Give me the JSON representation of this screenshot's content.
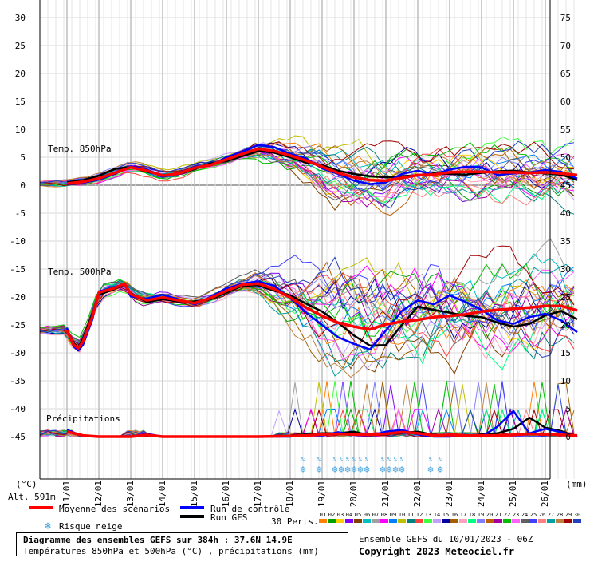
{
  "chart_data": {
    "type": "line",
    "title": "Diagramme des ensembles GEFS sur 384h : 37.6N 14.9E",
    "subtitle": "Températures 850hPa et 500hPa (°C) , précipitations (mm)",
    "left_axis_label": "(°C)",
    "right_axis_label": "(mm)",
    "altitude_label": "Alt. 591m",
    "left_ticks": [
      30,
      25,
      20,
      15,
      10,
      5,
      0,
      -5,
      -10,
      -15,
      -20,
      -25,
      -30,
      -35,
      -40,
      -45
    ],
    "right_ticks": [
      75,
      70,
      65,
      60,
      55,
      50,
      45,
      40,
      35,
      30,
      25,
      20,
      15,
      10,
      5,
      0
    ],
    "ylim_left": [
      -45,
      30
    ],
    "date_ticks": [
      "11/01",
      "12/01",
      "13/01",
      "14/01",
      "15/01",
      "16/01",
      "17/01",
      "18/01",
      "19/01",
      "20/01",
      "21/01",
      "22/01",
      "23/01",
      "24/01",
      "25/01",
      "26/01"
    ],
    "panel_labels": {
      "t850": "Temp. 850hPa",
      "t500": "Temp. 500hPa",
      "precip": "Précipitations"
    },
    "snow_risk_times": [
      7.4,
      7.9,
      8.4,
      8.6,
      8.8,
      9.0,
      9.2,
      9.4,
      9.9,
      10.1,
      10.3,
      10.5,
      11.4,
      11.7
    ],
    "series": {
      "mean_850": {
        "name": "Moyenne des scénarios",
        "color": "#ff0000",
        "x": [
          0,
          0.5,
          1,
          1.5,
          2,
          2.5,
          3,
          3.5,
          4,
          4.5,
          5,
          5.5,
          6,
          6.5,
          7,
          7.5,
          8,
          8.5,
          9,
          9.5,
          10,
          10.5,
          11,
          11.5,
          12,
          12.5,
          13,
          13.5,
          14,
          14.5,
          15,
          15.5,
          16
        ],
        "y": [
          0.3,
          0.6,
          1.2,
          2.2,
          3.2,
          2.6,
          1.7,
          2.1,
          3.1,
          3.6,
          4.6,
          5.6,
          6.5,
          6.1,
          5.3,
          4.4,
          3.3,
          2.2,
          1.4,
          0.9,
          0.8,
          1.3,
          1.8,
          1.9,
          2.3,
          2.4,
          2.4,
          2.3,
          2.3,
          2.2,
          2.3,
          2.1,
          1.8
        ]
      },
      "control_850": {
        "name": "Run de contrôle",
        "color": "#0000ff",
        "x": [
          0,
          0.5,
          1,
          1.5,
          2,
          2.5,
          3,
          3.5,
          4,
          4.5,
          5,
          5.5,
          6,
          6.5,
          7,
          7.5,
          8,
          8.5,
          9,
          9.5,
          10,
          10.5,
          11,
          11.5,
          12,
          12.5,
          13,
          13.5,
          14,
          14.5,
          15,
          15.5,
          16
        ],
        "y": [
          0.2,
          0.4,
          1.0,
          2.0,
          3.4,
          2.8,
          1.5,
          2.2,
          3.3,
          3.5,
          5.0,
          6.0,
          7.2,
          6.8,
          5.6,
          4.8,
          3.0,
          2.0,
          0.8,
          0.2,
          0.5,
          2.0,
          2.6,
          1.9,
          2.8,
          3.3,
          3.2,
          1.8,
          2.1,
          2.3,
          2.7,
          2.4,
          1.2
        ]
      },
      "gfs_850": {
        "name": "Run GFS",
        "color": "#000000",
        "x": [
          0,
          0.5,
          1,
          1.5,
          2,
          2.5,
          3,
          3.5,
          4,
          4.5,
          5,
          5.5,
          6,
          6.5,
          7,
          7.5,
          8,
          8.5,
          9,
          9.5,
          10,
          10.5,
          11,
          11.5,
          12,
          12.5,
          13,
          13.5,
          14,
          14.5,
          15,
          15.5,
          16
        ],
        "y": [
          0.5,
          0.9,
          1.7,
          2.9,
          3.3,
          2.4,
          1.8,
          2.0,
          2.9,
          3.9,
          4.3,
          5.2,
          6.1,
          5.8,
          5.0,
          4.0,
          3.6,
          2.6,
          2.0,
          1.6,
          1.4,
          1.6,
          1.8,
          2.1,
          2.0,
          1.9,
          2.2,
          2.5,
          2.6,
          2.3,
          2.1,
          1.9,
          0.9
        ]
      },
      "mean_500": {
        "name": "Moyenne des scénarios",
        "color": "#ff0000",
        "x": [
          0,
          0.2,
          0.35,
          0.5,
          0.8,
          1,
          1.5,
          1.8,
          2,
          2.5,
          3,
          3.5,
          4,
          4.5,
          5,
          5.5,
          6,
          6.5,
          7,
          7.5,
          8,
          8.5,
          9,
          9.5,
          10,
          10.5,
          11,
          11.5,
          12,
          12.5,
          13,
          13.5,
          14,
          14.5,
          15,
          15.5,
          16
        ],
        "y": [
          -26,
          -28.5,
          -29.2,
          -28,
          -23.5,
          -19.2,
          -18.4,
          -17.6,
          -19.5,
          -20.6,
          -20.1,
          -20.6,
          -21.1,
          -20.2,
          -18.9,
          -17.8,
          -17.6,
          -18.6,
          -20.1,
          -21.9,
          -23.4,
          -24.6,
          -25.3,
          -25.8,
          -24.9,
          -24.4,
          -24.1,
          -23.6,
          -23.4,
          -23.1,
          -22.6,
          -22.3,
          -22.1,
          -21.9,
          -21.6,
          -21.6,
          -22.4
        ]
      },
      "control_500": {
        "name": "Run de contrôle",
        "color": "#0000ff",
        "x": [
          0,
          0.2,
          0.35,
          0.5,
          0.8,
          1,
          1.5,
          1.8,
          2,
          2.5,
          3,
          3.5,
          4,
          4.5,
          5,
          5.5,
          6,
          6.5,
          7,
          7.5,
          8,
          8.5,
          9,
          9.5,
          10,
          10.5,
          11,
          11.5,
          12,
          12.5,
          13,
          13.5,
          14,
          14.5,
          15,
          15.5,
          16
        ],
        "y": [
          -25.5,
          -28.8,
          -29.6,
          -28.6,
          -24.0,
          -19.0,
          -18.3,
          -17.6,
          -19.9,
          -20.3,
          -19.6,
          -20.4,
          -21.3,
          -20.0,
          -18.5,
          -17.6,
          -17.2,
          -18.0,
          -20.2,
          -22.8,
          -25.0,
          -27.2,
          -28.4,
          -29.4,
          -26.0,
          -22.5,
          -20.6,
          -21.3,
          -19.7,
          -20.9,
          -22.3,
          -24.2,
          -24.8,
          -23.6,
          -23.0,
          -24.2,
          -26.3
        ]
      },
      "gfs_500": {
        "name": "Run GFS",
        "color": "#000000",
        "x": [
          0,
          0.2,
          0.35,
          0.5,
          0.8,
          1,
          1.5,
          1.8,
          2,
          2.5,
          3,
          3.5,
          4,
          4.5,
          5,
          5.5,
          6,
          6.5,
          7,
          7.5,
          8,
          8.5,
          9,
          9.5,
          10,
          10.5,
          11,
          11.5,
          12,
          12.5,
          13,
          13.5,
          14,
          14.5,
          15,
          15.5,
          16
        ],
        "y": [
          -25.8,
          -28.2,
          -29.0,
          -27.5,
          -23.0,
          -19.6,
          -18.6,
          -17.7,
          -19.3,
          -20.9,
          -20.4,
          -20.8,
          -20.8,
          -20.4,
          -19.2,
          -18.0,
          -17.9,
          -18.9,
          -19.7,
          -21.2,
          -22.6,
          -24.6,
          -26.9,
          -28.7,
          -28.6,
          -25.0,
          -21.7,
          -22.3,
          -22.8,
          -23.4,
          -23.6,
          -24.6,
          -25.3,
          -24.8,
          -23.3,
          -22.5,
          -24.0
        ]
      },
      "mean_precip": {
        "name": "Moyenne des scénarios",
        "color": "#ff0000",
        "x": [
          0,
          0.5,
          1,
          2,
          2.5,
          3,
          4,
          5,
          6,
          7,
          7.5,
          8,
          8.5,
          9,
          9.5,
          10,
          10.5,
          11,
          11.5,
          12,
          12.5,
          13,
          13.5,
          14,
          14.5,
          15,
          15.5,
          16
        ],
        "y": [
          0.9,
          0.2,
          0,
          0,
          0.3,
          0,
          0,
          0,
          0,
          0.1,
          0.2,
          0.4,
          0.5,
          0.4,
          0.3,
          0.5,
          0.8,
          0.6,
          0.2,
          0.3,
          0.2,
          0.2,
          0.2,
          0.3,
          0.5,
          0.4,
          0.3,
          0.2
        ]
      },
      "control_precip": {
        "name": "Run de contrôle",
        "color": "#0000ff",
        "x": [
          0,
          0.5,
          1,
          2,
          2.5,
          3,
          4,
          5,
          6,
          7,
          7.5,
          8,
          8.5,
          9,
          9.5,
          10,
          10.5,
          11,
          11.5,
          12,
          12.5,
          13,
          13.5,
          14,
          14.5,
          15,
          15.5,
          16
        ],
        "y": [
          1.2,
          0.1,
          0,
          0,
          0.5,
          0,
          0,
          0,
          0,
          0,
          0.3,
          0.2,
          0.8,
          0.3,
          0.1,
          0.9,
          1.2,
          0.4,
          0,
          0,
          0.3,
          0,
          1.8,
          4.6,
          0.6,
          1.4,
          0.8,
          0
        ]
      },
      "gfs_precip": {
        "name": "Run GFS",
        "color": "#000000",
        "x": [
          0,
          0.5,
          1,
          2,
          2.5,
          3,
          4,
          5,
          6,
          7,
          7.5,
          8,
          8.5,
          9,
          9.5,
          10,
          10.5,
          11,
          11.5,
          12,
          12.5,
          13,
          13.5,
          14,
          14.5,
          15,
          15.5,
          16
        ],
        "y": [
          1.0,
          0.2,
          0,
          0,
          0.2,
          0,
          0,
          0,
          0,
          0.2,
          0.4,
          0.6,
          0.6,
          0.9,
          0.2,
          0.4,
          0.7,
          0.9,
          0.3,
          0.2,
          0.1,
          0.4,
          0.6,
          1.4,
          3.4,
          1.6,
          1.0,
          0
        ]
      }
    }
  },
  "legend": {
    "mean": "Moyenne des scénarios",
    "control": "Run de contrôle",
    "gfs": "Run GFS",
    "snow": "Risque neige",
    "perts_label": "30 Perts.",
    "perts_numbers": [
      "01",
      "02",
      "03",
      "04",
      "05",
      "06",
      "07",
      "08",
      "09",
      "10",
      "11",
      "12",
      "13",
      "14",
      "15",
      "16",
      "17",
      "18",
      "19",
      "20",
      "21",
      "22",
      "23",
      "24",
      "25",
      "26",
      "27",
      "28",
      "29",
      "30"
    ],
    "perts_colors": [
      "#ff8000",
      "#00a000",
      "#ffd000",
      "#8000ff",
      "#804000",
      "#00c0c0",
      "#a0a0a0",
      "#ff00ff",
      "#0080ff",
      "#c0c000",
      "#008080",
      "#ff4040",
      "#40ff40",
      "#c0a0ff",
      "#0000a0",
      "#a06000",
      "#ffa0c0",
      "#00ff80",
      "#8080ff",
      "#c06000",
      "#a000a0",
      "#00c000",
      "#ff60ff",
      "#606060",
      "#4040ff",
      "#ff8080",
      "#00a0a0",
      "#c08040",
      "#a00000",
      "#2040c0"
    ]
  },
  "footer": {
    "box_line1": "Diagramme des ensembles GEFS sur 384h : 37.6N 14.9E",
    "box_line2": "Températures 850hPa et 500hPa (°C) , précipitations (mm)",
    "ens_info": "Ensemble GEFS du 10/01/2023 - 06Z",
    "copyright": "Copyright 2023 Meteociel.fr"
  }
}
